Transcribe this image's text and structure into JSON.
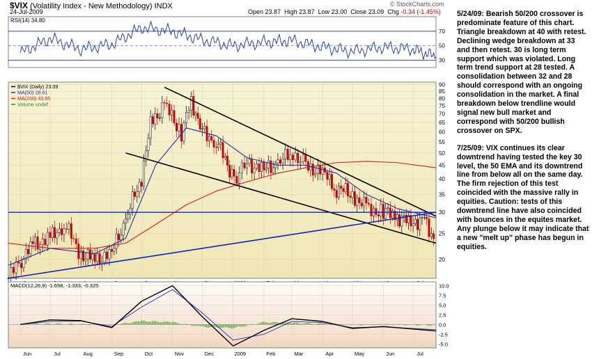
{
  "header": {
    "symbol": "$VIX",
    "name": "(Volatility Index - New Methodology)",
    "exchange": "INDX",
    "date": "24-Jul-2009",
    "open_label": "Open",
    "open": "23.87",
    "high_label": "High",
    "high": "23.87",
    "low_label": "Low",
    "low": "23.00",
    "close_label": "Close",
    "close": "23.09",
    "chg_label": "Chg",
    "chg": "-0.34 (-1.45%)",
    "brand": "© StockCharts.com"
  },
  "colors": {
    "price_bg": "#f5f0c8",
    "rsi_line": "#2b3fa8",
    "ma50": "#1f2ea8",
    "ma200": "#d02020",
    "trend": "#000000",
    "support": "#1020c0",
    "macd_hist": "#4a9a2a",
    "candle_up": "#000000",
    "candle_down": "#cc0000"
  },
  "notes": [
    "5/24/09:  Bearish 50/200 crossover is predominate feature of this chart.  Triangle breakdown at 40 with retest.  Declining wedge breakdown at 33 and then retest.  30 is long term support which was violated.   Long term trend support at 28 tested.  A consolidation between 32 and 28 should correspond with an ongoing consolidation in the market.  A final breakdown below trendline would signal new bull market and correspond with 50/200 bullish crossover on SPX.",
    "7/25/09:  VIX continues its clear downtrend having tested the key 30 level, the 50 EMA and its downtrend line from below all on the same day.  The firm rejection of this test coincided with the massive rally in equities.  Caution:  tests of this downtrend line have also coincided with bounces in the equites market.  Any plunge below it may indicate that a new \"melt up\" phase has begun in equities."
  ],
  "chart_data": [
    {
      "type": "line",
      "panel": "rsi",
      "legend": "RSI(14) 34.80",
      "ylim": [
        20,
        90
      ],
      "y_ticks": [
        30,
        50,
        70
      ],
      "reference_lines": [
        30,
        70
      ],
      "x": [
        "2008-06",
        "2008-07",
        "2008-08",
        "2008-09",
        "2008-10",
        "2008-11",
        "2008-12",
        "2009-01",
        "2009-02",
        "2009-03",
        "2009-04",
        "2009-05",
        "2009-06",
        "2009-07",
        "2009-07-24"
      ],
      "values": [
        40,
        60,
        45,
        52,
        75,
        70,
        58,
        50,
        55,
        57,
        48,
        42,
        48,
        45,
        34.8
      ]
    },
    {
      "type": "candlestick",
      "panel": "price",
      "scale": "log",
      "ylim": [
        17,
        92
      ],
      "y_ticks": [
        20,
        25,
        30,
        35,
        40,
        45,
        50,
        55,
        60,
        65,
        70,
        75,
        80,
        85,
        90
      ],
      "legend": [
        {
          "name": "$VIX (Daily) 23.09"
        },
        {
          "name": "MA(50) 28.61"
        },
        {
          "name": "MA(200) 43.95"
        },
        {
          "name": "Volume undef"
        }
      ],
      "x_ticks": [
        "Jun",
        "Jul",
        "Aug",
        "Sep",
        "Oct",
        "Nov",
        "Dec",
        "2009",
        "Feb",
        "Mar",
        "Apr",
        "May",
        "Jun",
        "Jul"
      ],
      "close_series": {
        "x": [
          "2008-05-20",
          "2008-06-02",
          "2008-06-16",
          "2008-07-01",
          "2008-07-15",
          "2008-08-01",
          "2008-08-15",
          "2008-09-01",
          "2008-09-15",
          "2008-10-01",
          "2008-10-10",
          "2008-10-24",
          "2008-11-10",
          "2008-11-20",
          "2008-12-01",
          "2008-12-15",
          "2009-01-02",
          "2009-01-15",
          "2009-02-01",
          "2009-02-15",
          "2009-03-02",
          "2009-03-15",
          "2009-04-01",
          "2009-04-15",
          "2009-05-01",
          "2009-05-15",
          "2009-06-01",
          "2009-06-15",
          "2009-07-01",
          "2009-07-10",
          "2009-07-24"
        ],
        "values": [
          17,
          20,
          23,
          24,
          27,
          21,
          20,
          21,
          28,
          40,
          65,
          75,
          60,
          78,
          60,
          55,
          40,
          46,
          43,
          46,
          50,
          45,
          42,
          37,
          35,
          31,
          30,
          29,
          27,
          29,
          23.09
        ]
      },
      "ma50": {
        "x": [
          "2008-05-20",
          "2008-07-01",
          "2008-08-15",
          "2008-09-15",
          "2008-10-15",
          "2008-11-15",
          "2008-12-15",
          "2009-01-15",
          "2009-02-15",
          "2009-03-15",
          "2009-04-15",
          "2009-05-15",
          "2009-06-15",
          "2009-07-24"
        ],
        "values": [
          19,
          22,
          21,
          24,
          45,
          62,
          58,
          48,
          45,
          45,
          42,
          35,
          31,
          28.6
        ]
      },
      "ma200": {
        "x": [
          "2008-05-20",
          "2008-07-01",
          "2008-08-15",
          "2008-09-15",
          "2008-10-15",
          "2008-11-15",
          "2008-12-15",
          "2009-01-15",
          "2009-02-15",
          "2009-03-15",
          "2009-04-15",
          "2009-05-15",
          "2009-06-15",
          "2009-07-24"
        ],
        "values": [
          23,
          22,
          22,
          23,
          27,
          32,
          36,
          39,
          42,
          44,
          46,
          46.5,
          46,
          44
        ]
      },
      "annotations": [
        {
          "kind": "trendline",
          "from": [
            "2008-10-24",
            88
          ],
          "to": [
            "2009-07-24",
            29
          ]
        },
        {
          "kind": "trendline",
          "from": [
            "2008-09-15",
            50
          ],
          "to": [
            "2009-07-24",
            23
          ]
        },
        {
          "kind": "trendline",
          "from": [
            "2008-05-20",
            17
          ],
          "to": [
            "2009-07-24",
            30
          ]
        },
        {
          "kind": "horizontal",
          "value": 30
        }
      ]
    },
    {
      "type": "line",
      "panel": "macd",
      "legend": "MACD(12,26,9) -1.658, -1.333, -0.325",
      "ylim": [
        -6,
        11
      ],
      "y_ticks": [
        -5.0,
        -2.5,
        0.0,
        2.5,
        5.0,
        7.5,
        10.0
      ],
      "x_ticks": [
        "Jun",
        "Jul",
        "Aug",
        "Sep",
        "Oct",
        "Nov",
        "Dec",
        "2009",
        "Feb",
        "Mar",
        "Apr",
        "May",
        "Jun",
        "Jul"
      ],
      "series": [
        {
          "values": [
            0,
            1.2,
            1.0,
            -0.8,
            6.0,
            10.0,
            2.0,
            -5.5,
            -1.5,
            1.5,
            0.8,
            -1.0,
            -0.5,
            -1.658
          ]
        },
        {
          "values": [
            0,
            0.8,
            0.9,
            -0.5,
            4.5,
            9.0,
            3.0,
            -4.0,
            -2.5,
            0.8,
            0.5,
            -0.8,
            -0.6,
            -1.333
          ]
        }
      ]
    }
  ]
}
